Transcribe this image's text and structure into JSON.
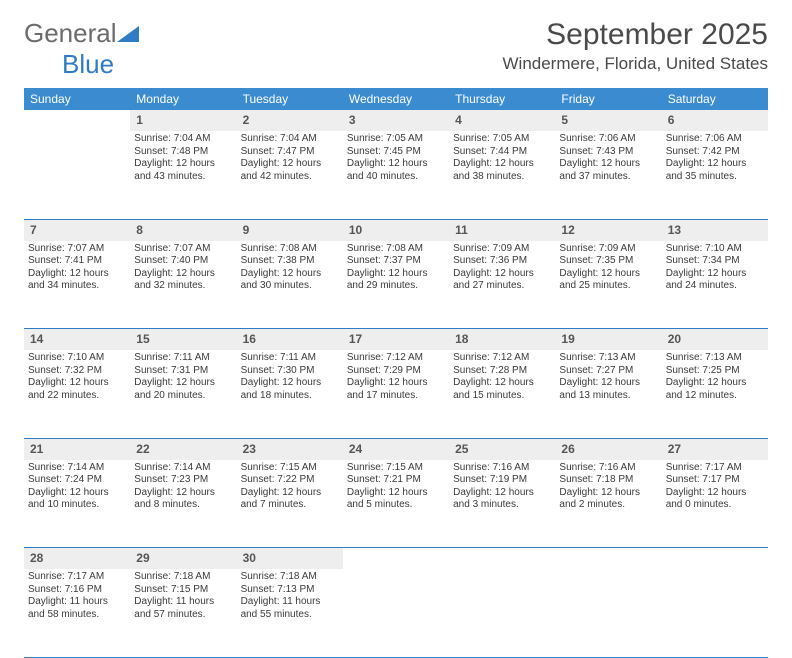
{
  "logo": {
    "word1": "General",
    "word2": "Blue"
  },
  "title": "September 2025",
  "location": "Windermere, Florida, United States",
  "colors": {
    "header_bg": "#3b8bd1",
    "header_text": "#ffffff",
    "daynum_bg": "#eeeeee",
    "rule": "#2f7bc4",
    "text": "#3a3a3a",
    "logo_gray": "#6b6b6b",
    "logo_blue": "#2f7bc4"
  },
  "typography": {
    "title_fontsize": 30,
    "location_fontsize": 17,
    "dow_fontsize": 12,
    "daynum_fontsize": 12,
    "cell_fontsize": 10
  },
  "days_of_week": [
    "Sunday",
    "Monday",
    "Tuesday",
    "Wednesday",
    "Thursday",
    "Friday",
    "Saturday"
  ],
  "weeks": [
    [
      null,
      {
        "n": "1",
        "sunrise": "7:04 AM",
        "sunset": "7:48 PM",
        "daylight": "12 hours and 43 minutes."
      },
      {
        "n": "2",
        "sunrise": "7:04 AM",
        "sunset": "7:47 PM",
        "daylight": "12 hours and 42 minutes."
      },
      {
        "n": "3",
        "sunrise": "7:05 AM",
        "sunset": "7:45 PM",
        "daylight": "12 hours and 40 minutes."
      },
      {
        "n": "4",
        "sunrise": "7:05 AM",
        "sunset": "7:44 PM",
        "daylight": "12 hours and 38 minutes."
      },
      {
        "n": "5",
        "sunrise": "7:06 AM",
        "sunset": "7:43 PM",
        "daylight": "12 hours and 37 minutes."
      },
      {
        "n": "6",
        "sunrise": "7:06 AM",
        "sunset": "7:42 PM",
        "daylight": "12 hours and 35 minutes."
      }
    ],
    [
      {
        "n": "7",
        "sunrise": "7:07 AM",
        "sunset": "7:41 PM",
        "daylight": "12 hours and 34 minutes."
      },
      {
        "n": "8",
        "sunrise": "7:07 AM",
        "sunset": "7:40 PM",
        "daylight": "12 hours and 32 minutes."
      },
      {
        "n": "9",
        "sunrise": "7:08 AM",
        "sunset": "7:38 PM",
        "daylight": "12 hours and 30 minutes."
      },
      {
        "n": "10",
        "sunrise": "7:08 AM",
        "sunset": "7:37 PM",
        "daylight": "12 hours and 29 minutes."
      },
      {
        "n": "11",
        "sunrise": "7:09 AM",
        "sunset": "7:36 PM",
        "daylight": "12 hours and 27 minutes."
      },
      {
        "n": "12",
        "sunrise": "7:09 AM",
        "sunset": "7:35 PM",
        "daylight": "12 hours and 25 minutes."
      },
      {
        "n": "13",
        "sunrise": "7:10 AM",
        "sunset": "7:34 PM",
        "daylight": "12 hours and 24 minutes."
      }
    ],
    [
      {
        "n": "14",
        "sunrise": "7:10 AM",
        "sunset": "7:32 PM",
        "daylight": "12 hours and 22 minutes."
      },
      {
        "n": "15",
        "sunrise": "7:11 AM",
        "sunset": "7:31 PM",
        "daylight": "12 hours and 20 minutes."
      },
      {
        "n": "16",
        "sunrise": "7:11 AM",
        "sunset": "7:30 PM",
        "daylight": "12 hours and 18 minutes."
      },
      {
        "n": "17",
        "sunrise": "7:12 AM",
        "sunset": "7:29 PM",
        "daylight": "12 hours and 17 minutes."
      },
      {
        "n": "18",
        "sunrise": "7:12 AM",
        "sunset": "7:28 PM",
        "daylight": "12 hours and 15 minutes."
      },
      {
        "n": "19",
        "sunrise": "7:13 AM",
        "sunset": "7:27 PM",
        "daylight": "12 hours and 13 minutes."
      },
      {
        "n": "20",
        "sunrise": "7:13 AM",
        "sunset": "7:25 PM",
        "daylight": "12 hours and 12 minutes."
      }
    ],
    [
      {
        "n": "21",
        "sunrise": "7:14 AM",
        "sunset": "7:24 PM",
        "daylight": "12 hours and 10 minutes."
      },
      {
        "n": "22",
        "sunrise": "7:14 AM",
        "sunset": "7:23 PM",
        "daylight": "12 hours and 8 minutes."
      },
      {
        "n": "23",
        "sunrise": "7:15 AM",
        "sunset": "7:22 PM",
        "daylight": "12 hours and 7 minutes."
      },
      {
        "n": "24",
        "sunrise": "7:15 AM",
        "sunset": "7:21 PM",
        "daylight": "12 hours and 5 minutes."
      },
      {
        "n": "25",
        "sunrise": "7:16 AM",
        "sunset": "7:19 PM",
        "daylight": "12 hours and 3 minutes."
      },
      {
        "n": "26",
        "sunrise": "7:16 AM",
        "sunset": "7:18 PM",
        "daylight": "12 hours and 2 minutes."
      },
      {
        "n": "27",
        "sunrise": "7:17 AM",
        "sunset": "7:17 PM",
        "daylight": "12 hours and 0 minutes."
      }
    ],
    [
      {
        "n": "28",
        "sunrise": "7:17 AM",
        "sunset": "7:16 PM",
        "daylight": "11 hours and 58 minutes."
      },
      {
        "n": "29",
        "sunrise": "7:18 AM",
        "sunset": "7:15 PM",
        "daylight": "11 hours and 57 minutes."
      },
      {
        "n": "30",
        "sunrise": "7:18 AM",
        "sunset": "7:13 PM",
        "daylight": "11 hours and 55 minutes."
      },
      null,
      null,
      null,
      null
    ]
  ],
  "labels": {
    "sunrise": "Sunrise:",
    "sunset": "Sunset:",
    "daylight": "Daylight:"
  }
}
